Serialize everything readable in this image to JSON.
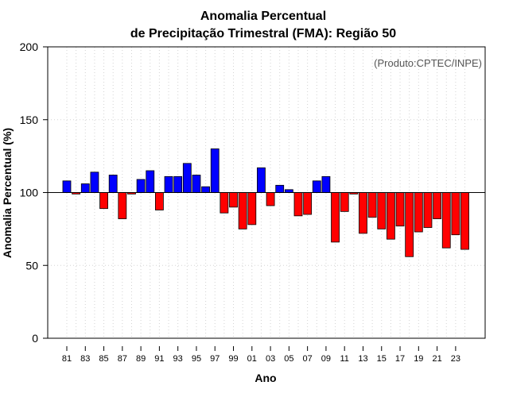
{
  "chart_data": {
    "type": "bar",
    "title_lines": [
      "Anomalia Percentual",
      "de Precipitação Trimestral (FMA): Região 50"
    ],
    "xlabel": "Ano",
    "ylabel": "Anomalia Percentual (%)",
    "credit": "(Produto:CPTEC/INPE)",
    "ylim": [
      0,
      200
    ],
    "yticks": [
      0,
      50,
      100,
      150,
      200
    ],
    "baseline": 100,
    "grid": true,
    "categories": [
      "81",
      "82",
      "83",
      "84",
      "85",
      "86",
      "87",
      "88",
      "89",
      "90",
      "91",
      "92",
      "93",
      "94",
      "95",
      "96",
      "97",
      "98",
      "99",
      "00",
      "01",
      "02",
      "03",
      "04",
      "05",
      "06",
      "07",
      "08",
      "09",
      "10",
      "11",
      "12",
      "13",
      "14",
      "15",
      "16",
      "17",
      "18",
      "19",
      "20",
      "21",
      "22",
      "23",
      "24"
    ],
    "xtick_labels": [
      "81",
      "83",
      "85",
      "87",
      "89",
      "91",
      "93",
      "95",
      "97",
      "99",
      "01",
      "03",
      "05",
      "07",
      "09",
      "11",
      "13",
      "15",
      "17",
      "19",
      "21",
      "23"
    ],
    "values": [
      108,
      99,
      106,
      114,
      89,
      112,
      82,
      99,
      109,
      115,
      88,
      111,
      111,
      120,
      112,
      104,
      130,
      86,
      90,
      75,
      78,
      117,
      91,
      105,
      102,
      84,
      85,
      108,
      111,
      66,
      87,
      99,
      72,
      83,
      75,
      68,
      77,
      56,
      73,
      76,
      82,
      62,
      71,
      61
    ],
    "colors": {
      "above": "#0000ff",
      "below": "#ff0000",
      "outline": "#000000",
      "grid": "#d3d3d3"
    }
  }
}
